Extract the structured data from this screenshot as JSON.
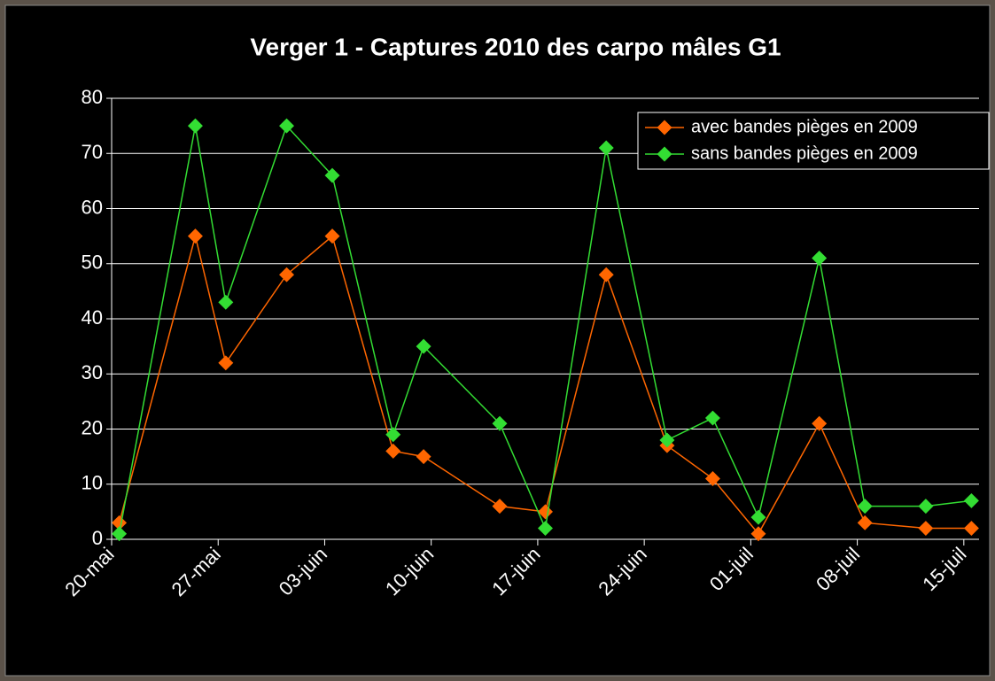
{
  "chart_data": {
    "type": "line",
    "title": "Verger 1 - Captures 2010 des carpo mâles G1",
    "x": [
      "05-20",
      "05-25",
      "05-27",
      "05-31",
      "06-03",
      "06-07",
      "06-09",
      "06-14",
      "06-17",
      "06-21",
      "06-25",
      "06-28",
      "07-01",
      "07-05",
      "07-08",
      "07-12",
      "07-15"
    ],
    "series": [
      {
        "name": "avec bandes pièges en 2009",
        "color": "#ff6600",
        "values": [
          3,
          55,
          32,
          48,
          55,
          16,
          15,
          6,
          5,
          48,
          17,
          11,
          1,
          21,
          3,
          2,
          2
        ]
      },
      {
        "name": "sans bandes pièges en 2009",
        "color": "#33dd33",
        "values": [
          1,
          75,
          43,
          75,
          66,
          19,
          35,
          21,
          2,
          71,
          18,
          22,
          4,
          51,
          6,
          6,
          7
        ]
      }
    ],
    "xlim": [
      "05-20",
      "07-16"
    ],
    "xticks": [
      {
        "value": "05-20",
        "label": "20-mai"
      },
      {
        "value": "05-27",
        "label": "27-mai"
      },
      {
        "value": "06-03",
        "label": "03-juin"
      },
      {
        "value": "06-10",
        "label": "10-juin"
      },
      {
        "value": "06-17",
        "label": "17-juin"
      },
      {
        "value": "06-24",
        "label": "24-juin"
      },
      {
        "value": "07-01",
        "label": "01-juil"
      },
      {
        "value": "07-08",
        "label": "08-juil"
      },
      {
        "value": "07-15",
        "label": "15-juil"
      }
    ],
    "ylim": [
      0,
      80
    ],
    "yticks": [
      0,
      10,
      20,
      30,
      40,
      50,
      60,
      70,
      80
    ],
    "grid": true,
    "legend": "upper right"
  }
}
